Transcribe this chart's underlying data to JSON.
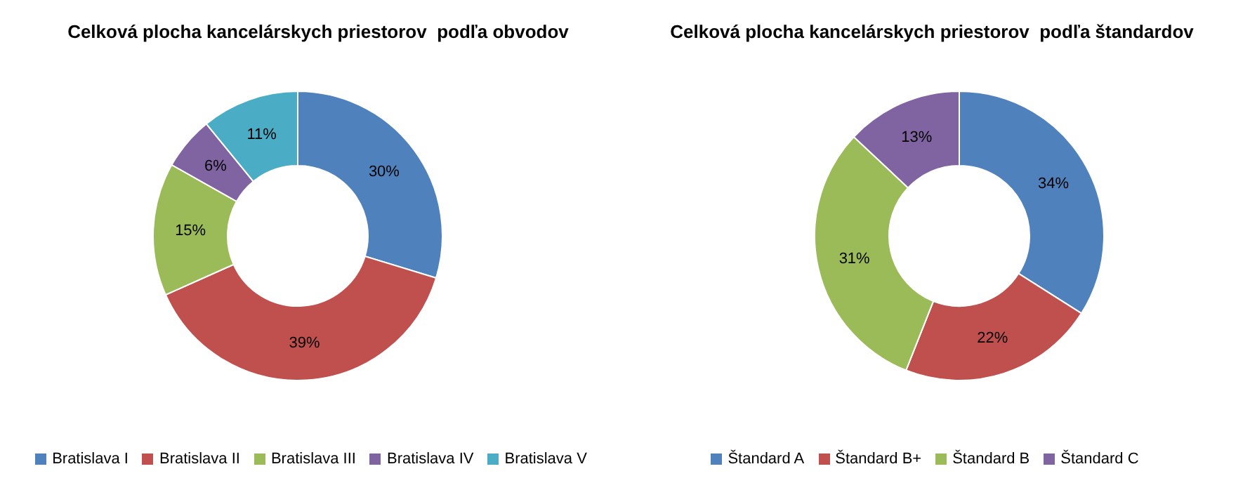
{
  "chart_data": [
    {
      "type": "donut",
      "title": "Celková plocha kancelárskych priestorov  podľa obvodov",
      "categories": [
        "Bratislava I",
        "Bratislava II",
        "Bratislava III",
        "Bratislava IV",
        "Bratislava V"
      ],
      "values": [
        30,
        39,
        15,
        6,
        11
      ],
      "value_labels": [
        "30%",
        "39%",
        "15%",
        "6%",
        "11%"
      ],
      "colors": [
        "#4f81bd",
        "#c0504d",
        "#9bbb59",
        "#8064a2",
        "#4bacc6"
      ],
      "legend": "bottom"
    },
    {
      "type": "donut",
      "title": "Celková plocha kancelárskych priestorov  podľa štandardov",
      "categories": [
        "Štandard A",
        "Štandard B+",
        "Štandard B",
        "Štandard C"
      ],
      "values": [
        34,
        22,
        31,
        13
      ],
      "value_labels": [
        "34%",
        "22%",
        "31%",
        "13%"
      ],
      "colors": [
        "#4f81bd",
        "#c0504d",
        "#9bbb59",
        "#8064a2"
      ],
      "legend": "bottom"
    }
  ]
}
